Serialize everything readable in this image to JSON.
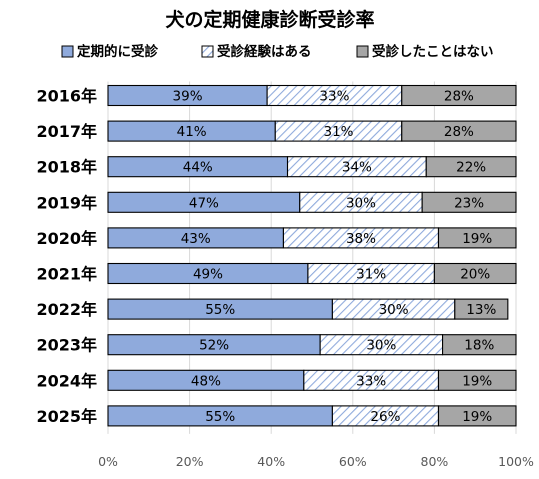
{
  "chart_data": {
    "type": "bar",
    "orientation": "horizontal",
    "stacked": "percent",
    "title": "犬の定期健康診断受診率",
    "categories": [
      "2016年",
      "2017年",
      "2018年",
      "2019年",
      "2020年",
      "2021年",
      "2022年",
      "2023年",
      "2024年",
      "2025年"
    ],
    "series": [
      {
        "name": "定期的に受診",
        "values": [
          39,
          41,
          44,
          47,
          43,
          49,
          55,
          52,
          48,
          55
        ],
        "color": "#8faadc",
        "pattern": "solid"
      },
      {
        "name": "受診経験はある",
        "values": [
          33,
          31,
          34,
          30,
          38,
          31,
          30,
          30,
          33,
          26
        ],
        "color": "#8faadc",
        "pattern": "hatch"
      },
      {
        "name": "受診したことはない",
        "values": [
          28,
          28,
          22,
          23,
          19,
          20,
          13,
          18,
          19,
          19
        ],
        "color": "#a6a6a6",
        "pattern": "solid"
      }
    ],
    "data_labels": [
      [
        "39%",
        "33%",
        "28%"
      ],
      [
        "41%",
        "31%",
        "28%"
      ],
      [
        "44%",
        "34%",
        "22%"
      ],
      [
        "47%",
        "30%",
        "23%"
      ],
      [
        "43%",
        "38%",
        "19%"
      ],
      [
        "49%",
        "31%",
        "20%"
      ],
      [
        "55%",
        "30%",
        "13%"
      ],
      [
        "52%",
        "30%",
        "18%"
      ],
      [
        "48%",
        "33%",
        "19%"
      ],
      [
        "55%",
        "26%",
        "19%"
      ]
    ],
    "x_ticks": [
      "0%",
      "20%",
      "40%",
      "60%",
      "80%",
      "100%"
    ],
    "xlim": [
      0,
      100
    ],
    "xlabel": "",
    "ylabel": "",
    "grid": true,
    "legend_position": "top"
  }
}
